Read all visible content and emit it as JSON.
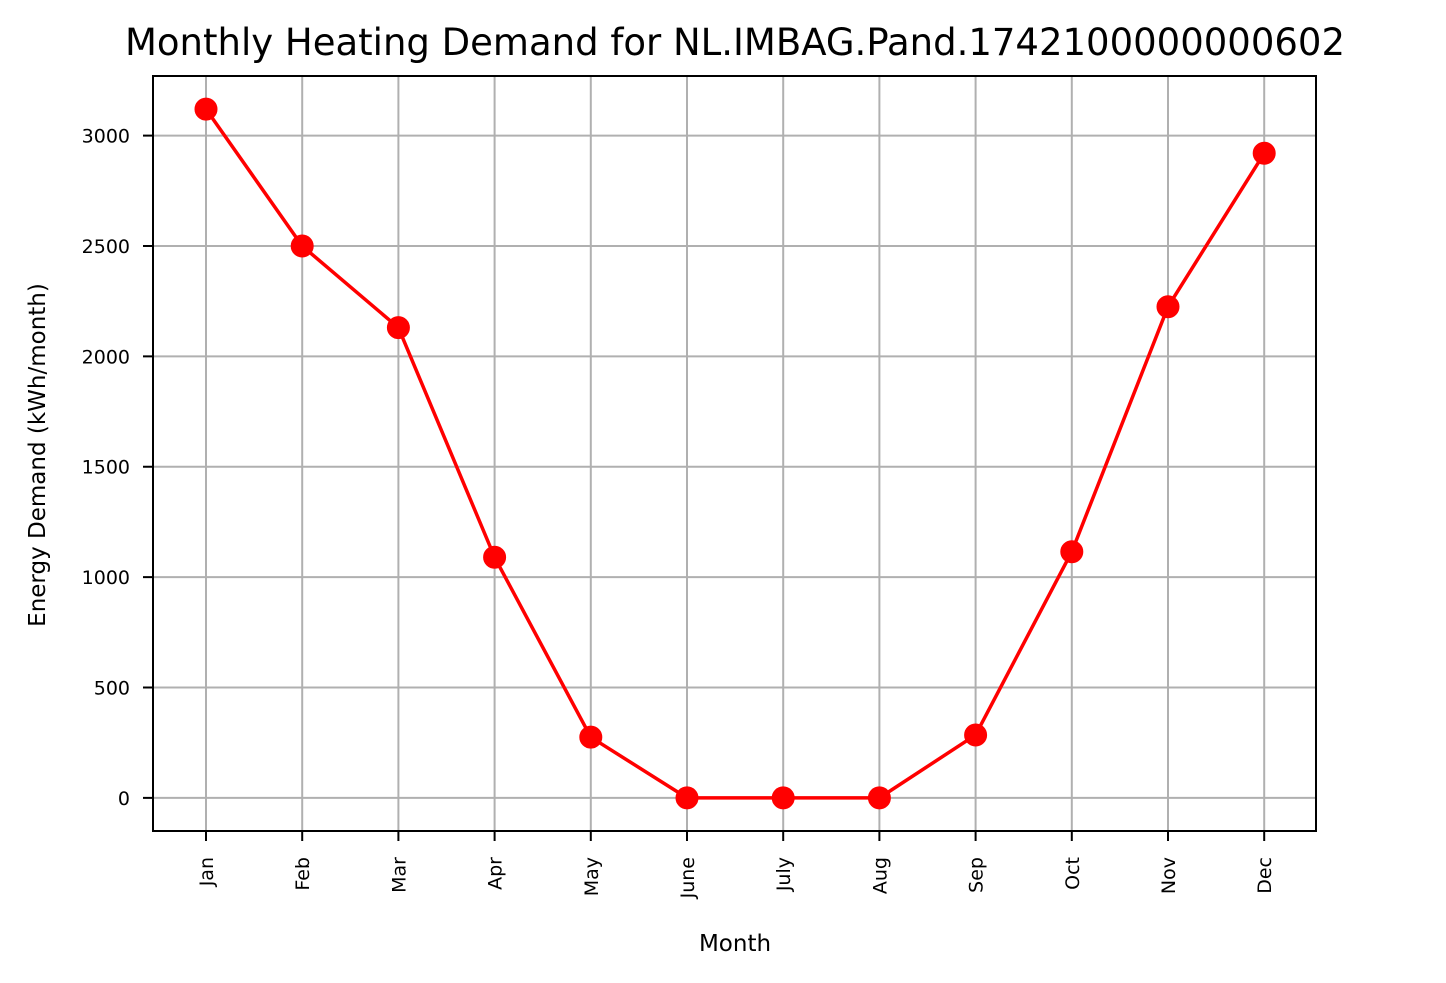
{
  "chart_data": {
    "type": "line",
    "title": "Monthly Heating Demand for NL.IMBAG.Pand.1742100000000602",
    "xlabel": "Month",
    "ylabel": "Energy Demand (kWh/month)",
    "categories": [
      "Jan",
      "Feb",
      "Mar",
      "Apr",
      "May",
      "June",
      "July",
      "Aug",
      "Sep",
      "Oct",
      "Nov",
      "Dec"
    ],
    "series": [
      {
        "values": [
          3120,
          2500,
          2130,
          1090,
          275,
          0,
          0,
          0,
          285,
          1115,
          2225,
          2920
        ],
        "color": "#ff0000",
        "marker": "circle"
      }
    ],
    "ylim": [
      -150,
      3270
    ],
    "yticks": [
      0,
      500,
      1000,
      1500,
      2000,
      2500,
      3000
    ],
    "grid": true,
    "legend": "none"
  }
}
